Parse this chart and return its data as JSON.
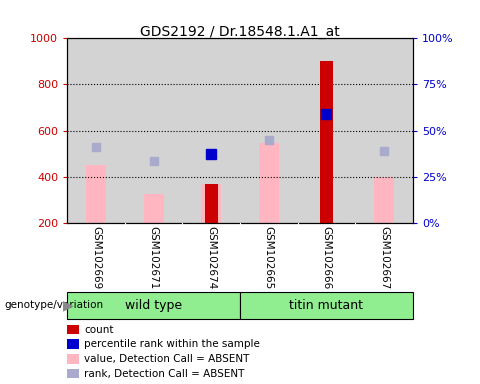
{
  "title": "GDS2192 / Dr.18548.1.A1_at",
  "samples": [
    "GSM102669",
    "GSM102671",
    "GSM102674",
    "GSM102665",
    "GSM102666",
    "GSM102667"
  ],
  "ylim_left": [
    200,
    1000
  ],
  "ylim_right": [
    0,
    100
  ],
  "pink_bar_values": [
    450,
    325,
    370,
    545,
    null,
    400
  ],
  "light_blue_square_values": [
    530,
    470,
    null,
    560,
    670,
    510
  ],
  "dark_red_bar_values": [
    null,
    null,
    370,
    null,
    900,
    null
  ],
  "blue_square_values": [
    null,
    null,
    500,
    null,
    670,
    null
  ],
  "pink_color": "#FFB6C1",
  "light_blue_color": "#AAAACC",
  "dark_red_color": "#CC0000",
  "blue_color": "#0000CC",
  "ylabel_left_color": "#CC0000",
  "ylabel_right_color": "#0000CC",
  "grid_color": "#000000",
  "bg_plot_color": "#D3D3D3",
  "bg_outer_color": "#FFFFFF",
  "bg_label_color": "#C0C0C0",
  "green_color": "#90EE90",
  "yticks_left": [
    200,
    400,
    600,
    800,
    1000
  ],
  "yticks_right": [
    0,
    25,
    50,
    75,
    100
  ],
  "bar_width": 0.35,
  "dark_red_bar_width": 0.22,
  "legend_items": [
    {
      "color": "#CC0000",
      "label": "count"
    },
    {
      "color": "#0000CC",
      "label": "percentile rank within the sample"
    },
    {
      "color": "#FFB6C1",
      "label": "value, Detection Call = ABSENT"
    },
    {
      "color": "#AAAACC",
      "label": "rank, Detection Call = ABSENT"
    }
  ],
  "wt_samples": [
    0,
    1,
    2
  ],
  "tm_samples": [
    3,
    4,
    5
  ]
}
